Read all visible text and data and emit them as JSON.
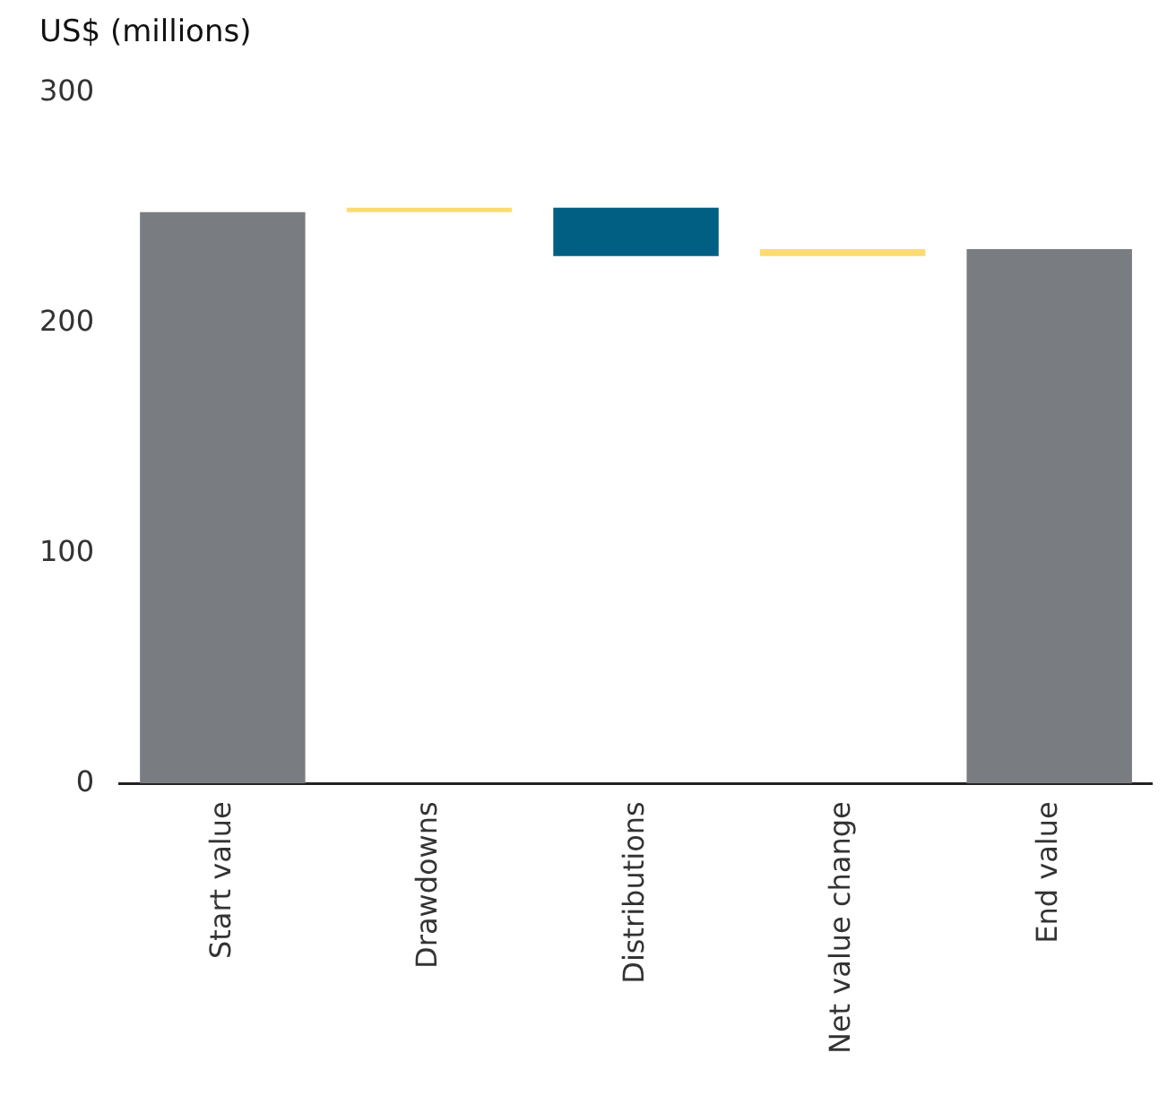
{
  "chart_data": {
    "type": "bar",
    "ylabel": "US$ (millions)",
    "categories": [
      "Start value",
      "Drawdowns",
      "Distributions",
      "Net value change",
      "End value"
    ],
    "values": [
      248,
      2,
      -21,
      3,
      232
    ],
    "base": [
      0,
      248,
      250,
      229,
      0
    ],
    "colors": [
      "#797d81",
      "#fddb73",
      "#005f83",
      "#fddb73",
      "#797d81"
    ],
    "ylim": [
      0,
      300
    ],
    "yticks": [
      0,
      100,
      200,
      300
    ],
    "grid": false,
    "legend": false
  }
}
